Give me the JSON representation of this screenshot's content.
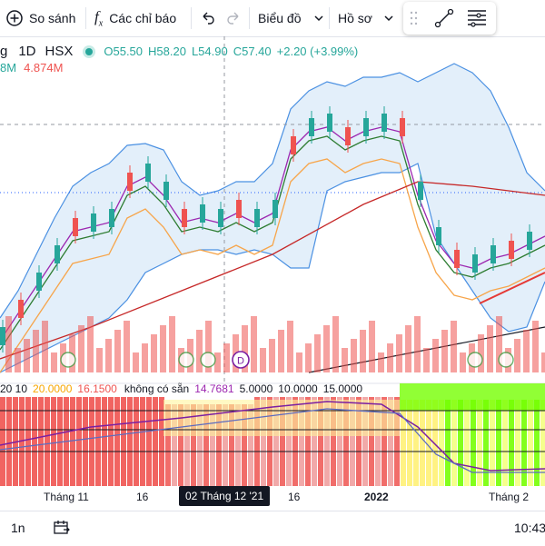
{
  "toolbar": {
    "compare_label": "So sánh",
    "indicators_label": "Các chỉ báo",
    "chart_type_label": "Biểu đồ",
    "profile_label": "Hồ sơ"
  },
  "legend": {
    "symbol_fragment": "g",
    "interval": "1D",
    "exchange": "HSX",
    "open": "O55.50",
    "high": "H58.20",
    "low": "L54.90",
    "close": "C57.40",
    "change": "+2.20 (+3.99%)",
    "volume_fragment": "8M",
    "volume_ma": "4.874M"
  },
  "indicator_legend": {
    "params": "20 10",
    "v1": "20.0000",
    "v2": "16.1500",
    "unavailable": "không có sẵn",
    "v3": "14.7681",
    "v4": "5.0000",
    "v5": "10.0000",
    "v6": "15.0000"
  },
  "time_axis": {
    "labels": [
      "Tháng 11",
      "16",
      "02 Tháng 12 '21",
      "16",
      "2022",
      "Tháng 2"
    ]
  },
  "markers": {
    "dividend": "D"
  },
  "bottom_bar": {
    "interval": "1n",
    "time": "10:43"
  },
  "colors": {
    "up": "#26a69a",
    "down": "#ef5350",
    "band": "#4a90e2",
    "accent": "#2962ff",
    "axis_highlight": "#131722"
  },
  "icons": [
    "plus-circle-icon",
    "fx-icon",
    "undo-icon",
    "redo-icon",
    "chevron-down-icon",
    "drag-handle-icon",
    "line-tool-icon",
    "menu-lines-icon",
    "calendar-range-icon"
  ]
}
